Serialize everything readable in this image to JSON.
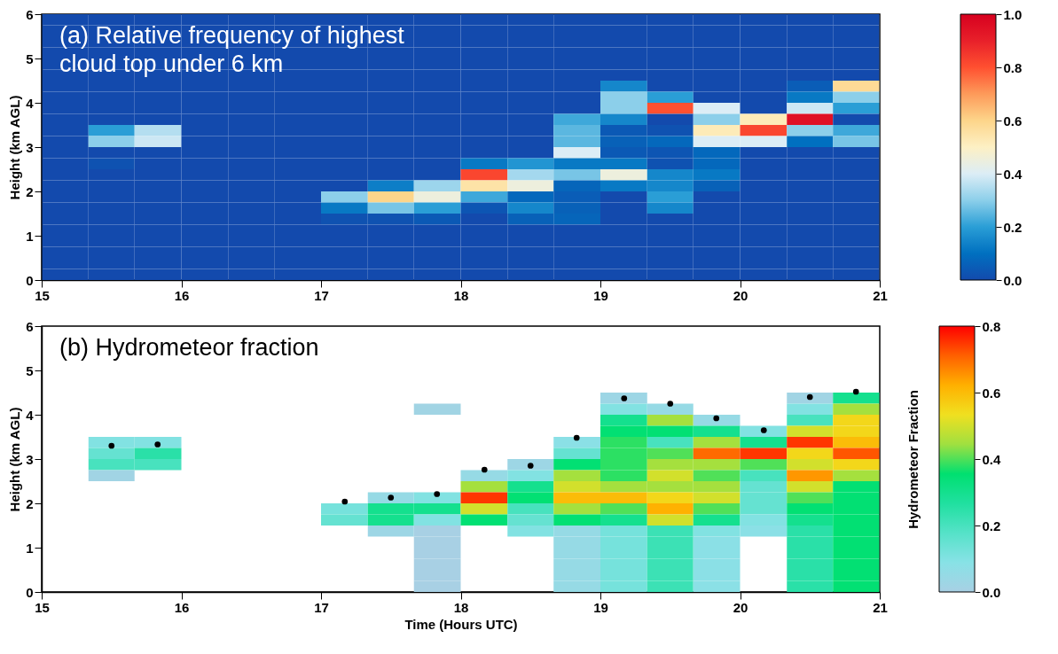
{
  "chart_data": [
    {
      "type": "heatmap",
      "title": "(a) Relative frequency of highest cloud top under 6 km",
      "ylabel": "Height (km AGL)",
      "x": [
        15.17,
        15.5,
        15.83,
        16.17,
        16.5,
        16.83,
        17.17,
        17.5,
        17.83,
        18.17,
        18.5,
        18.83,
        19.17,
        19.5,
        19.83,
        20.17,
        20.5,
        20.83
      ],
      "y": [
        5.875,
        5.625,
        5.375,
        5.125,
        4.875,
        4.625,
        4.375,
        4.125,
        3.875,
        3.625,
        3.375,
        3.125,
        2.875,
        2.625,
        2.375,
        2.125,
        1.875,
        1.625,
        1.375,
        1.125,
        0.875,
        0.625,
        0.375,
        0.125
      ],
      "xlim": [
        15,
        21
      ],
      "xticks": [
        15,
        16,
        17,
        18,
        19,
        20,
        21
      ],
      "ylim": [
        0,
        6
      ],
      "yticks": [
        0,
        1,
        2,
        3,
        4,
        5,
        6
      ],
      "clim": [
        0,
        1
      ],
      "cticks": [
        {
          "value": 0,
          "label": "0.0"
        },
        {
          "value": 0.2,
          "label": "0.2"
        },
        {
          "value": 0.4,
          "label": "0.4"
        },
        {
          "value": 0.6,
          "label": "0.6"
        },
        {
          "value": 0.8,
          "label": "0.8"
        },
        {
          "value": 1,
          "label": "1.0"
        }
      ],
      "cells": [
        [
          0,
          0,
          0,
          0,
          0,
          0,
          0,
          0,
          0,
          0,
          0,
          0,
          0,
          0,
          0,
          0,
          0,
          0
        ],
        [
          0,
          0,
          0,
          0,
          0,
          0,
          0,
          0,
          0,
          0,
          0,
          0,
          0,
          0,
          0,
          0,
          0,
          0
        ],
        [
          0,
          0,
          0,
          0,
          0,
          0,
          0,
          0,
          0,
          0,
          0,
          0,
          0,
          0,
          0,
          0,
          0,
          0
        ],
        [
          0,
          0,
          0,
          0,
          0,
          0,
          0,
          0,
          0,
          0,
          0,
          0,
          0,
          0,
          0,
          0,
          0,
          0
        ],
        [
          0,
          0,
          0,
          0,
          0,
          0,
          0,
          0,
          0,
          0,
          0,
          0,
          0,
          0,
          0,
          0,
          0,
          0
        ],
        [
          0,
          0,
          0,
          0,
          0,
          0,
          0,
          0,
          0,
          0,
          0,
          0,
          0,
          0,
          0,
          0,
          0,
          0
        ],
        [
          0,
          0,
          0,
          0,
          0,
          0,
          0,
          0,
          0,
          0,
          0,
          0,
          0.15,
          0,
          0,
          0,
          0.05,
          0.58
        ],
        [
          0,
          0,
          0,
          0,
          0,
          0,
          0,
          0,
          0,
          0,
          0,
          0,
          0.3,
          0.2,
          0,
          0,
          0.12,
          0.3
        ],
        [
          0,
          0,
          0,
          0,
          0,
          0,
          0,
          0,
          0,
          0,
          0,
          0,
          0.3,
          0.8,
          0.4,
          0,
          0.38,
          0.2
        ],
        [
          0,
          0,
          0,
          0,
          0,
          0,
          0,
          0,
          0,
          0,
          0,
          0.22,
          0.15,
          0,
          0.3,
          0.52,
          0.95,
          0
        ],
        [
          0,
          0.2,
          0.35,
          0,
          0,
          0,
          0,
          0,
          0,
          0,
          0,
          0.25,
          0.04,
          0.02,
          0.52,
          0.82,
          0.3,
          0.22
        ],
        [
          0,
          0.3,
          0.38,
          0,
          0,
          0,
          0,
          0,
          0,
          0,
          0,
          0.25,
          0.06,
          0.08,
          0.4,
          0.4,
          0.1,
          0.28
        ],
        [
          0,
          0,
          0,
          0,
          0,
          0,
          0,
          0,
          0,
          0,
          0,
          0.4,
          0.04,
          0.03,
          0.08,
          0,
          0,
          0
        ],
        [
          0,
          0.02,
          0,
          0,
          0,
          0,
          0,
          0,
          0,
          0.12,
          0.18,
          0.12,
          0.12,
          0.02,
          0.08,
          0,
          0,
          0
        ],
        [
          0,
          0,
          0,
          0,
          0,
          0,
          0,
          0,
          0,
          0.82,
          0.33,
          0.28,
          0.45,
          0.15,
          0.12,
          0,
          0,
          0
        ],
        [
          0,
          0,
          0,
          0,
          0,
          0,
          0,
          0.13,
          0.32,
          0.55,
          0.45,
          0.07,
          0.12,
          0.15,
          0.06,
          0,
          0,
          0
        ],
        [
          0,
          0,
          0,
          0,
          0,
          0,
          0.3,
          0.6,
          0.45,
          0.22,
          0.08,
          0.05,
          0,
          0.2,
          0,
          0,
          0,
          0
        ],
        [
          0,
          0,
          0,
          0,
          0,
          0,
          0.12,
          0.28,
          0.2,
          0.03,
          0.15,
          0.06,
          0,
          0.15,
          0,
          0,
          0,
          0
        ],
        [
          0,
          0,
          0,
          0,
          0,
          0,
          0.02,
          0.02,
          0.04,
          0,
          0.06,
          0.07,
          0,
          0,
          0,
          0,
          0,
          0
        ],
        [
          0,
          0,
          0,
          0,
          0,
          0,
          0,
          0,
          0,
          0,
          0,
          0,
          0,
          0,
          0,
          0,
          0,
          0
        ],
        [
          0,
          0,
          0,
          0,
          0,
          0,
          0,
          0,
          0,
          0,
          0,
          0,
          0,
          0,
          0,
          0,
          0,
          0
        ],
        [
          0,
          0,
          0,
          0,
          0,
          0,
          0,
          0,
          0,
          0,
          0,
          0,
          0,
          0,
          0,
          0,
          0,
          0
        ],
        [
          0,
          0,
          0,
          0,
          0,
          0,
          0,
          0,
          0,
          0,
          0,
          0,
          0,
          0,
          0,
          0,
          0,
          0
        ],
        [
          0,
          0,
          0,
          0,
          0,
          0,
          0,
          0,
          0,
          0,
          0,
          0,
          0,
          0,
          0,
          0,
          0,
          0
        ]
      ]
    },
    {
      "type": "heatmap",
      "title": "(b) Hydrometeor fraction",
      "xlabel": "Time (Hours UTC)",
      "ylabel": "Height (km AGL)",
      "clabel": "Hydrometeor Fraction",
      "x": [
        15.17,
        15.5,
        15.83,
        16.17,
        16.5,
        16.83,
        17.17,
        17.5,
        17.83,
        18.17,
        18.5,
        18.83,
        19.17,
        19.5,
        19.83,
        20.17,
        20.5,
        20.83
      ],
      "y": [
        4.375,
        4.125,
        3.875,
        3.625,
        3.375,
        3.125,
        2.875,
        2.625,
        2.375,
        2.125,
        1.875,
        1.625,
        1.375,
        1.125,
        0.875,
        0.625,
        0.375,
        0.125
      ],
      "xlim": [
        15,
        21
      ],
      "xticks": [
        15,
        16,
        17,
        18,
        19,
        20,
        21
      ],
      "ylim": [
        0,
        6
      ],
      "yticks": [
        0,
        1,
        2,
        3,
        4,
        5,
        6
      ],
      "clim": [
        0,
        0.8
      ],
      "cticks": [
        {
          "value": 0,
          "label": "0.0"
        },
        {
          "value": 0.2,
          "label": "0.2"
        },
        {
          "value": 0.4,
          "label": "0.4"
        },
        {
          "value": 0.6,
          "label": "0.6"
        },
        {
          "value": 0.8,
          "label": "0.8"
        }
      ],
      "marker": "circle",
      "series": [
        {
          "type": "scatter",
          "color": "#000000",
          "x": [
            15.5,
            15.83,
            17.17,
            17.5,
            17.83,
            18.17,
            18.5,
            18.83,
            19.17,
            19.5,
            19.83,
            20.17,
            20.5,
            20.83
          ],
          "values": [
            3.3,
            3.33,
            2.04,
            2.13,
            2.21,
            2.76,
            2.85,
            3.48,
            4.37,
            4.25,
            3.92,
            3.65,
            4.4,
            4.52
          ]
        }
      ],
      "cells": [
        [
          null,
          null,
          null,
          null,
          null,
          null,
          null,
          null,
          null,
          null,
          null,
          null,
          0.03,
          null,
          null,
          null,
          0.02,
          0.3
        ],
        [
          null,
          null,
          null,
          null,
          null,
          null,
          null,
          null,
          0.02,
          null,
          null,
          null,
          0.1,
          0.05,
          null,
          null,
          0.1,
          0.45
        ],
        [
          null,
          null,
          null,
          null,
          null,
          null,
          null,
          null,
          null,
          null,
          null,
          null,
          0.3,
          0.45,
          0.05,
          null,
          0.2,
          0.55
        ],
        [
          null,
          null,
          null,
          null,
          null,
          null,
          null,
          null,
          null,
          null,
          null,
          null,
          0.35,
          0.35,
          0.3,
          0.1,
          0.5,
          0.55
        ],
        [
          null,
          0.1,
          0.1,
          null,
          null,
          null,
          null,
          null,
          null,
          null,
          null,
          0.08,
          0.38,
          0.2,
          0.45,
          0.3,
          0.75,
          0.6
        ],
        [
          null,
          0.15,
          0.25,
          null,
          null,
          null,
          null,
          null,
          null,
          null,
          null,
          0.15,
          0.38,
          0.4,
          0.7,
          0.75,
          0.55,
          0.72
        ],
        [
          null,
          0.2,
          0.2,
          null,
          null,
          null,
          null,
          null,
          null,
          null,
          0.03,
          0.35,
          0.38,
          0.45,
          0.45,
          0.4,
          0.5,
          0.55
        ],
        [
          null,
          0.02,
          null,
          null,
          null,
          null,
          null,
          null,
          null,
          0.05,
          0.1,
          0.45,
          0.38,
          0.5,
          0.4,
          0.2,
          0.65,
          0.45
        ],
        [
          null,
          null,
          null,
          null,
          null,
          null,
          null,
          null,
          null,
          0.45,
          0.3,
          0.5,
          0.45,
          0.45,
          0.45,
          0.15,
          0.5,
          0.35
        ],
        [
          null,
          null,
          null,
          null,
          null,
          null,
          null,
          0.05,
          0.1,
          0.75,
          0.35,
          0.6,
          0.6,
          0.55,
          0.5,
          0.15,
          0.4,
          0.35
        ],
        [
          null,
          null,
          null,
          null,
          null,
          null,
          0.12,
          0.3,
          0.3,
          0.5,
          0.2,
          0.45,
          0.4,
          0.62,
          0.4,
          0.15,
          0.35,
          0.35
        ],
        [
          null,
          null,
          null,
          null,
          null,
          null,
          0.15,
          0.3,
          0.1,
          0.35,
          0.15,
          0.35,
          0.3,
          0.5,
          0.3,
          0.1,
          0.3,
          0.35
        ],
        [
          null,
          null,
          null,
          null,
          null,
          null,
          null,
          0.03,
          0,
          null,
          0.1,
          0.05,
          0.12,
          0.22,
          0.1,
          0.08,
          0.25,
          0.35
        ],
        [
          null,
          null,
          null,
          null,
          null,
          null,
          null,
          null,
          0,
          null,
          null,
          0.05,
          0.12,
          0.22,
          0.08,
          null,
          0.25,
          0.35
        ],
        [
          null,
          null,
          null,
          null,
          null,
          null,
          null,
          null,
          0,
          null,
          null,
          0.05,
          0.12,
          0.22,
          0.08,
          null,
          0.25,
          0.35
        ],
        [
          null,
          null,
          null,
          null,
          null,
          null,
          null,
          null,
          0,
          null,
          null,
          0.05,
          0.12,
          0.22,
          0.08,
          null,
          0.25,
          0.35
        ],
        [
          null,
          null,
          null,
          null,
          null,
          null,
          null,
          null,
          0,
          null,
          null,
          0.05,
          0.12,
          0.22,
          0.08,
          null,
          0.25,
          0.35
        ],
        [
          null,
          null,
          null,
          null,
          null,
          null,
          null,
          null,
          0,
          null,
          null,
          0.05,
          0.12,
          0.22,
          0.08,
          null,
          0.25,
          0.35
        ]
      ]
    }
  ]
}
